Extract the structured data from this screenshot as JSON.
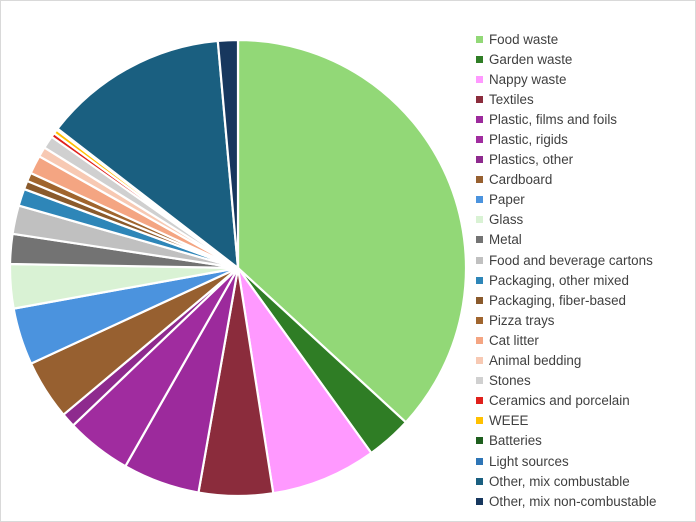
{
  "chart_data": {
    "type": "pie",
    "title": "",
    "legend_position": "right",
    "start_angle_deg": 0,
    "direction": "clockwise",
    "slices": [
      {
        "label": "Food waste",
        "value": 36.5,
        "color": "#92d877"
      },
      {
        "label": "Garden waste",
        "value": 3.2,
        "color": "#2f7d25"
      },
      {
        "label": "Nappy waste",
        "value": 7.4,
        "color": "#ff99ff"
      },
      {
        "label": "Textiles",
        "value": 5.2,
        "color": "#8b2c3c"
      },
      {
        "label": "Plastic, films and foils",
        "value": 5.4,
        "color": "#9c2a9c"
      },
      {
        "label": "Plastic, rigids",
        "value": 4.6,
        "color": "#a02c9f"
      },
      {
        "label": "Plastics, other",
        "value": 1.0,
        "color": "#8e2a8e"
      },
      {
        "label": "Cardboard",
        "value": 4.2,
        "color": "#976030"
      },
      {
        "label": "Paper",
        "value": 4.0,
        "color": "#4b93de"
      },
      {
        "label": "Glass",
        "value": 3.1,
        "color": "#d9f2d4"
      },
      {
        "label": "Metal",
        "value": 2.1,
        "color": "#737373"
      },
      {
        "label": "Food and beverage cartons",
        "value": 2.0,
        "color": "#c0c0c0"
      },
      {
        "label": "Packaging, other mixed",
        "value": 1.2,
        "color": "#2e86b8"
      },
      {
        "label": "Packaging, fiber-based",
        "value": 0.6,
        "color": "#8a5a2c"
      },
      {
        "label": "Pizza trays",
        "value": 0.6,
        "color": "#a0652e"
      },
      {
        "label": "Cat litter",
        "value": 1.3,
        "color": "#f4a582"
      },
      {
        "label": "Animal bedding",
        "value": 0.7,
        "color": "#f7c9b3"
      },
      {
        "label": "Stones",
        "value": 0.9,
        "color": "#d0d0d0"
      },
      {
        "label": "Ceramics and porcelain",
        "value": 0.3,
        "color": "#e0201b"
      },
      {
        "label": "WEEE",
        "value": 0.3,
        "color": "#ffc000"
      },
      {
        "label": "Batteries",
        "value": 0.05,
        "color": "#1e5e1e"
      },
      {
        "label": "Light sources",
        "value": 0.05,
        "color": "#2e75b6"
      },
      {
        "label": "Other, mix combustable",
        "value": 13.0,
        "color": "#1a5f80"
      },
      {
        "label": "Other, mix non-combustable",
        "value": 1.4,
        "color": "#17375e"
      }
    ]
  }
}
